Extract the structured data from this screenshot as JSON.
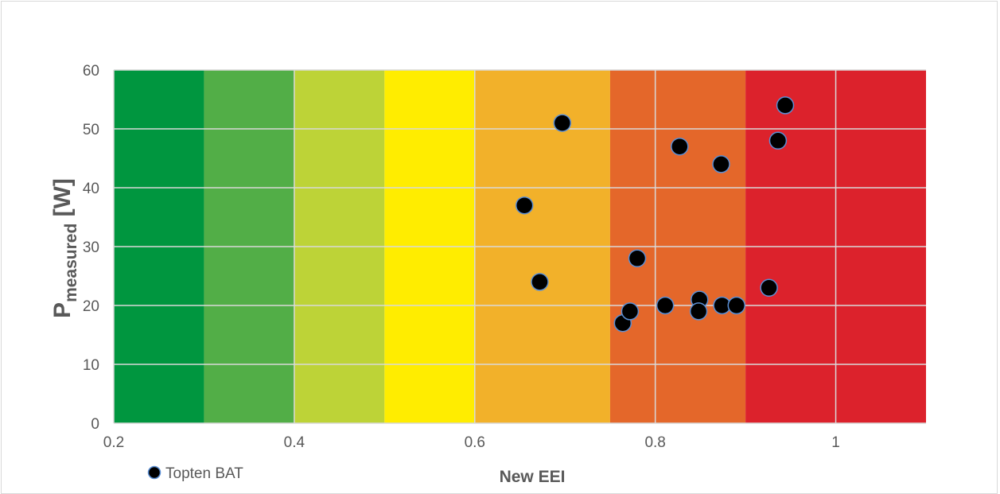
{
  "chart_data": {
    "type": "scatter",
    "xlabel": "New EEI",
    "ylabel_main": "P",
    "ylabel_sub": "measured",
    "ylabel_unit": " [W]",
    "xlim": [
      0.2,
      1.1
    ],
    "ylim": [
      0,
      60
    ],
    "x_ticks": [
      {
        "value": 0.2,
        "label": "0.2"
      },
      {
        "value": 0.4,
        "label": "0.4"
      },
      {
        "value": 0.6,
        "label": "0.6"
      },
      {
        "value": 0.8,
        "label": "0.8"
      },
      {
        "value": 1.0,
        "label": "1"
      }
    ],
    "y_ticks": [
      {
        "value": 0,
        "label": "0"
      },
      {
        "value": 10,
        "label": "10"
      },
      {
        "value": 20,
        "label": "20"
      },
      {
        "value": 30,
        "label": "30"
      },
      {
        "value": 40,
        "label": "40"
      },
      {
        "value": 50,
        "label": "50"
      },
      {
        "value": 60,
        "label": "60"
      }
    ],
    "grid": true,
    "legend_position": "bottom-left",
    "background_bands": [
      {
        "from": 0.2,
        "to": 0.3,
        "color": "#00963f"
      },
      {
        "from": 0.3,
        "to": 0.4,
        "color": "#52ae47"
      },
      {
        "from": 0.4,
        "to": 0.5,
        "color": "#bdd337"
      },
      {
        "from": 0.5,
        "to": 0.6,
        "color": "#ffed00"
      },
      {
        "from": 0.6,
        "to": 0.75,
        "color": "#f2b12a"
      },
      {
        "from": 0.75,
        "to": 0.9,
        "color": "#e4672a"
      },
      {
        "from": 0.9,
        "to": 1.1,
        "color": "#dc222c"
      }
    ],
    "series": [
      {
        "name": "Topten BAT",
        "marker_fill": "#000000",
        "marker_stroke": "#5b8fd4",
        "points": [
          {
            "x": 0.655,
            "y": 37
          },
          {
            "x": 0.672,
            "y": 24
          },
          {
            "x": 0.697,
            "y": 51
          },
          {
            "x": 0.764,
            "y": 17
          },
          {
            "x": 0.772,
            "y": 19
          },
          {
            "x": 0.78,
            "y": 28
          },
          {
            "x": 0.811,
            "y": 20
          },
          {
            "x": 0.827,
            "y": 47
          },
          {
            "x": 0.849,
            "y": 21
          },
          {
            "x": 0.848,
            "y": 19
          },
          {
            "x": 0.873,
            "y": 44
          },
          {
            "x": 0.874,
            "y": 20
          },
          {
            "x": 0.89,
            "y": 20
          },
          {
            "x": 0.926,
            "y": 23
          },
          {
            "x": 0.936,
            "y": 48
          },
          {
            "x": 0.944,
            "y": 54
          }
        ]
      }
    ]
  }
}
